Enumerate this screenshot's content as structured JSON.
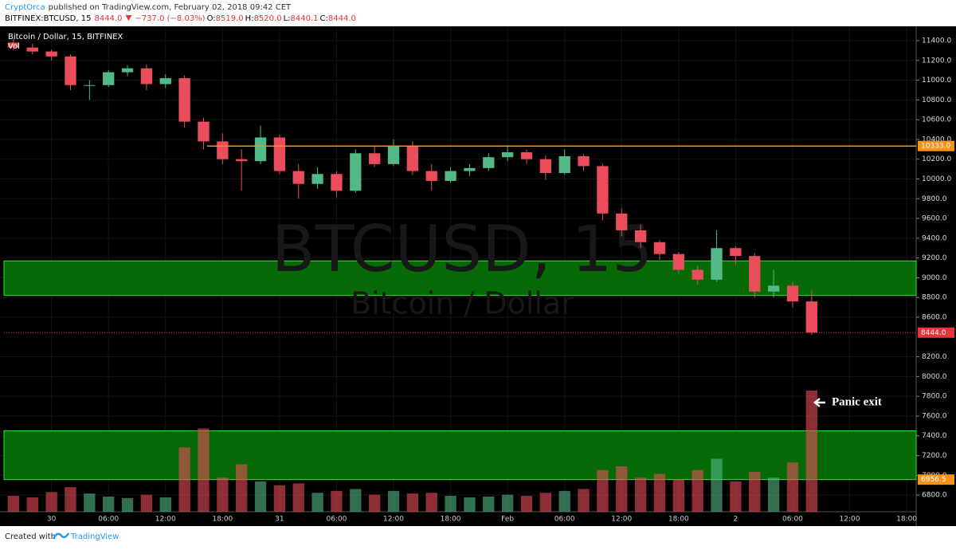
{
  "header": {
    "author": "CryptOrca",
    "published": "published on TradingView.com, February 02, 2018 09:42 CET",
    "symbol": "BITFINEX:BTCUSD, 15",
    "last": "8444.0",
    "change": "−737.0 (−8.03%)",
    "ohlc": [
      {
        "label": "O:",
        "value": "8519.0"
      },
      {
        "label": "H:",
        "value": "8520.0"
      },
      {
        "label": "L:",
        "value": "8440.1"
      },
      {
        "label": "C:",
        "value": "8444.0"
      }
    ]
  },
  "chart_data": {
    "type": "candlestick",
    "legend": "Bitcoin / Dollar, 15, BITFINEX",
    "volume_label": "Vol",
    "watermark": "BTCUSD, 15",
    "watermark_subtitle": "Bitcoin / Dollar",
    "annotation": "Panic exit",
    "up_color": "#53b987",
    "down_color": "#eb4d5c",
    "grid": true,
    "xlim": [
      -5,
      91
    ],
    "xticks": [
      {
        "value": 0,
        "label": "30"
      },
      {
        "value": 6,
        "label": "06:00"
      },
      {
        "value": 12,
        "label": "12:00"
      },
      {
        "value": 18,
        "label": "18:00"
      },
      {
        "value": 24,
        "label": "31"
      },
      {
        "value": 30,
        "label": "06:00"
      },
      {
        "value": 36,
        "label": "12:00"
      },
      {
        "value": 42,
        "label": "18:00"
      },
      {
        "value": 48,
        "label": "Feb"
      },
      {
        "value": 54,
        "label": "06:00"
      },
      {
        "value": 60,
        "label": "12:00"
      },
      {
        "value": 66,
        "label": "18:00"
      },
      {
        "value": 72,
        "label": "2"
      },
      {
        "value": 78,
        "label": "06:00"
      },
      {
        "value": 84,
        "label": "12:00"
      },
      {
        "value": 90,
        "label": "18:00"
      }
    ],
    "ylim": [
      6631,
      11529
    ],
    "yticks": [
      {
        "value": 6800,
        "label": "6800.0"
      },
      {
        "value": 7000,
        "label": "7000.0"
      },
      {
        "value": 7200,
        "label": "7200.0"
      },
      {
        "value": 7400,
        "label": "7400.0"
      },
      {
        "value": 7600,
        "label": "7600.0"
      },
      {
        "value": 7800,
        "label": "7800.0"
      },
      {
        "value": 8000,
        "label": "8000.0"
      },
      {
        "value": 8200,
        "label": "8200.0"
      },
      {
        "value": 8600,
        "label": "8600.0"
      },
      {
        "value": 8800,
        "label": "8800.0"
      },
      {
        "value": 9000,
        "label": "9000.0"
      },
      {
        "value": 9200,
        "label": "9200.0"
      },
      {
        "value": 9400,
        "label": "9400.0"
      },
      {
        "value": 9600,
        "label": "9600.0"
      },
      {
        "value": 9800,
        "label": "9800.0"
      },
      {
        "value": 10000,
        "label": "10000.0"
      },
      {
        "value": 10200,
        "label": "10200.0"
      },
      {
        "value": 10400,
        "label": "10400.0"
      },
      {
        "value": 10600,
        "label": "10600.0"
      },
      {
        "value": 10800,
        "label": "10800.0"
      },
      {
        "value": 11000,
        "label": "11000.0"
      },
      {
        "value": 11200,
        "label": "11200.0"
      },
      {
        "value": 11400,
        "label": "11400.0"
      }
    ],
    "zones": [
      {
        "from": 8820,
        "to": 9170,
        "color": "#066b06"
      },
      {
        "from": 6956.5,
        "to": 7450,
        "color": "#066b06"
      }
    ],
    "levels": [
      {
        "value": 10333,
        "label": "10333.0",
        "color": "#f7931a",
        "style": "solid"
      },
      {
        "value": 8444,
        "label": "8444.0",
        "color": "#e8323c",
        "style": "dotted"
      },
      {
        "value": 6956.5,
        "label": "6956.5",
        "color": "#f7931a",
        "style": "none"
      }
    ],
    "x": [
      -4,
      -2,
      0,
      2,
      4,
      6,
      8,
      10,
      12,
      14,
      16,
      18,
      20,
      22,
      24,
      26,
      28,
      30,
      32,
      34,
      36,
      38,
      40,
      42,
      44,
      46,
      48,
      50,
      52,
      54,
      56,
      58,
      60,
      62,
      64,
      66,
      68,
      70,
      72,
      74,
      76,
      78,
      80
    ],
    "open": [
      11380,
      11330,
      11290,
      11240,
      10950,
      10950,
      11080,
      11120,
      10960,
      11020,
      10580,
      10380,
      10200,
      10180,
      10420,
      10080,
      9950,
      10050,
      9880,
      10260,
      10150,
      10330,
      10080,
      9980,
      10080,
      10110,
      10220,
      10270,
      10200,
      10060,
      10230,
      10130,
      9650,
      9480,
      9360,
      9240,
      9080,
      8980,
      9300,
      9220,
      8860,
      8920,
      8760
    ],
    "high": [
      11420,
      11370,
      11310,
      11260,
      11000,
      11100,
      11150,
      11160,
      11060,
      11050,
      10620,
      10460,
      10300,
      10540,
      10450,
      10150,
      10120,
      10080,
      10300,
      10330,
      10400,
      10380,
      10150,
      10120,
      10150,
      10260,
      10340,
      10300,
      10240,
      10300,
      10250,
      10150,
      9700,
      9540,
      9380,
      9260,
      9120,
      9480,
      9320,
      9250,
      9080,
      8960,
      8870
    ],
    "low": [
      11300,
      11260,
      11200,
      10900,
      10800,
      10930,
      11040,
      10900,
      10920,
      10520,
      10300,
      10150,
      9880,
      10150,
      10050,
      9800,
      9900,
      9820,
      9860,
      10120,
      10130,
      10040,
      9880,
      9960,
      10030,
      10080,
      10180,
      10150,
      9990,
      10040,
      10080,
      9580,
      9420,
      9300,
      9180,
      9040,
      8930,
      8960,
      9130,
      8800,
      8800,
      8700,
      8420
    ],
    "close": [
      11330,
      11290,
      11240,
      10950,
      10950,
      11080,
      11120,
      10960,
      11020,
      10580,
      10380,
      10200,
      10180,
      10420,
      10080,
      9950,
      10050,
      9880,
      10260,
      10150,
      10330,
      10080,
      9980,
      10080,
      10110,
      10220,
      10270,
      10200,
      10060,
      10230,
      10130,
      9650,
      9480,
      9360,
      9240,
      9080,
      8980,
      9300,
      9220,
      8860,
      8920,
      8760,
      8444
    ],
    "volume": [
      420,
      380,
      520,
      650,
      480,
      400,
      360,
      450,
      380,
      1700,
      2200,
      900,
      1250,
      800,
      700,
      750,
      500,
      550,
      600,
      450,
      550,
      480,
      500,
      420,
      380,
      400,
      450,
      420,
      500,
      550,
      600,
      1100,
      1200,
      900,
      1000,
      850,
      1100,
      1400,
      800,
      1050,
      900,
      1300,
      3200
    ]
  },
  "footer": {
    "created": "Created with",
    "brand": "TradingView"
  }
}
